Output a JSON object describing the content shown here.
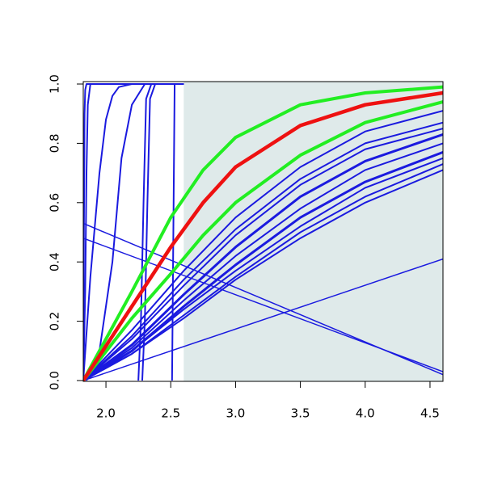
{
  "chart_data": {
    "type": "line",
    "xlim": [
      1.825,
      4.6
    ],
    "ylim": [
      0,
      1
    ],
    "xticks": [
      {
        "value": 2,
        "label": "2.0"
      },
      2.5,
      {
        "value": 3,
        "label": "3.0"
      },
      3.5,
      {
        "value": 4,
        "label": "4.0"
      },
      4.5
    ],
    "yticks": [
      {
        "value": 0,
        "label": "0.0"
      },
      0.2,
      0.4,
      0.6,
      0.8,
      {
        "value": 1,
        "label": "1.0"
      }
    ],
    "shaded_region": {
      "x": [
        2.6,
        4.6
      ],
      "color": "#dfeaea"
    },
    "series": [
      {
        "color": "#1a1adf",
        "width": 2,
        "x": [
          1.825,
          1.83,
          1.835,
          1.84,
          1.85,
          2.6
        ],
        "values": [
          0,
          0.5,
          0.9,
          0.98,
          1,
          1
        ]
      },
      {
        "color": "#1a1adf",
        "width": 2,
        "x": [
          1.825,
          1.84,
          1.85,
          1.86,
          1.88,
          2.6
        ],
        "values": [
          0,
          0.3,
          0.7,
          0.93,
          1,
          1
        ]
      },
      {
        "color": "#1a1adf",
        "width": 2,
        "x": [
          1.825,
          1.88,
          1.95,
          2.0,
          2.05,
          2.1,
          2.2,
          2.6
        ],
        "values": [
          0,
          0.35,
          0.7,
          0.88,
          0.96,
          0.99,
          1,
          1
        ]
      },
      {
        "color": "#1a1adf",
        "width": 2,
        "x": [
          1.85,
          1.95,
          2.05,
          2.12,
          2.2,
          2.3,
          2.6
        ],
        "values": [
          0,
          0.1,
          0.4,
          0.75,
          0.93,
          1,
          1
        ]
      },
      {
        "color": "#1a1adf",
        "width": 2,
        "x": [
          2.25,
          2.27,
          2.29,
          2.31,
          2.35,
          2.6
        ],
        "values": [
          0,
          0.2,
          0.6,
          0.95,
          1,
          1
        ]
      },
      {
        "color": "#1a1adf",
        "width": 2,
        "x": [
          2.28,
          2.3,
          2.32,
          2.34,
          2.38,
          2.6
        ],
        "values": [
          0,
          0.2,
          0.6,
          0.95,
          1,
          1
        ]
      },
      {
        "color": "#1a1adf",
        "width": 2,
        "x": [
          2.51,
          2.52,
          2.53,
          2.6
        ],
        "values": [
          0,
          0.5,
          1,
          1
        ]
      },
      {
        "color": "#1a1adf",
        "width": 1.5,
        "x": [
          1.825,
          4.6
        ],
        "values": [
          0.53,
          0.02
        ]
      },
      {
        "color": "#1a1adf",
        "width": 1.5,
        "x": [
          1.825,
          4.6
        ],
        "values": [
          0.48,
          0.03
        ]
      },
      {
        "color": "#1a1adf",
        "width": 1.5,
        "x": [
          1.825,
          4.6
        ],
        "values": [
          0,
          0.41
        ]
      },
      {
        "color": "#1a1adf",
        "width": 2,
        "x": [
          1.825,
          2.2,
          2.6,
          3.0,
          3.5,
          4.0,
          4.6
        ],
        "values": [
          0,
          0.17,
          0.37,
          0.55,
          0.72,
          0.84,
          0.91
        ]
      },
      {
        "color": "#1a1adf",
        "width": 2,
        "x": [
          1.825,
          2.2,
          2.6,
          3.0,
          3.5,
          4.0,
          4.6
        ],
        "values": [
          0,
          0.15,
          0.34,
          0.51,
          0.68,
          0.8,
          0.87
        ]
      },
      {
        "color": "#1a1adf",
        "width": 2,
        "x": [
          1.825,
          2.2,
          2.6,
          3.0,
          3.5,
          4.0,
          4.6
        ],
        "values": [
          0,
          0.14,
          0.32,
          0.49,
          0.66,
          0.78,
          0.85
        ]
      },
      {
        "color": "#1a1adf",
        "width": 3,
        "x": [
          1.825,
          2.2,
          2.6,
          3.0,
          3.5,
          4.0,
          4.6
        ],
        "values": [
          0,
          0.12,
          0.29,
          0.45,
          0.62,
          0.74,
          0.83
        ]
      },
      {
        "color": "#1a1adf",
        "width": 2,
        "x": [
          1.825,
          2.2,
          2.6,
          3.0,
          3.5,
          4.0,
          4.6
        ],
        "values": [
          0,
          0.11,
          0.27,
          0.42,
          0.58,
          0.71,
          0.8
        ]
      },
      {
        "color": "#1a1adf",
        "width": 3,
        "x": [
          1.825,
          2.2,
          2.6,
          3.0,
          3.5,
          4.0,
          4.6
        ],
        "values": [
          0,
          0.1,
          0.25,
          0.39,
          0.55,
          0.67,
          0.77
        ]
      },
      {
        "color": "#1a1adf",
        "width": 2,
        "x": [
          1.825,
          2.2,
          2.6,
          3.0,
          3.5,
          4.0,
          4.6
        ],
        "values": [
          0,
          0.1,
          0.24,
          0.37,
          0.52,
          0.65,
          0.75
        ]
      },
      {
        "color": "#1a1adf",
        "width": 2,
        "x": [
          1.825,
          2.2,
          2.6,
          3.0,
          3.5,
          4.0,
          4.6
        ],
        "values": [
          0,
          0.09,
          0.22,
          0.35,
          0.5,
          0.62,
          0.73
        ]
      },
      {
        "color": "#1a1adf",
        "width": 2,
        "x": [
          1.825,
          2.2,
          2.6,
          3.0,
          3.5,
          4.0,
          4.6
        ],
        "values": [
          0,
          0.09,
          0.21,
          0.34,
          0.48,
          0.6,
          0.71
        ]
      },
      {
        "color": "#22ee22",
        "width": 4,
        "x": [
          1.825,
          2.2,
          2.5,
          2.75,
          3.0,
          3.5,
          4.0,
          4.6
        ],
        "values": [
          0,
          0.3,
          0.55,
          0.71,
          0.82,
          0.93,
          0.97,
          0.99
        ]
      },
      {
        "color": "#22ee22",
        "width": 4,
        "x": [
          1.825,
          2.2,
          2.5,
          2.75,
          3.0,
          3.5,
          4.0,
          4.6
        ],
        "values": [
          0,
          0.21,
          0.36,
          0.49,
          0.6,
          0.76,
          0.87,
          0.94
        ]
      },
      {
        "color": "#ee1111",
        "width": 4.5,
        "x": [
          1.825,
          2.2,
          2.5,
          2.75,
          3.0,
          3.5,
          4.0,
          4.6
        ],
        "values": [
          0,
          0.25,
          0.45,
          0.6,
          0.72,
          0.86,
          0.93,
          0.97
        ]
      }
    ]
  }
}
